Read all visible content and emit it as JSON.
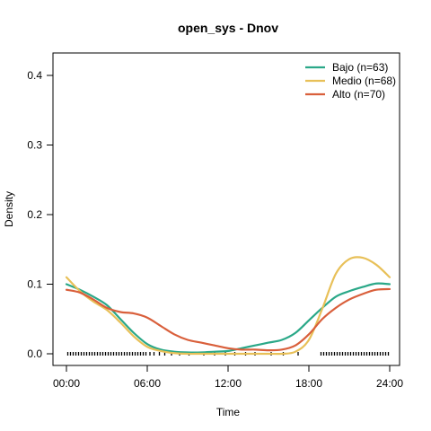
{
  "chart_data": {
    "type": "line",
    "title": "open_sys - Dnov",
    "xlabel": "Time",
    "ylabel": "Density",
    "x_tick_labels": [
      "00:00",
      "06:00",
      "12:00",
      "18:00",
      "24:00"
    ],
    "x_ticks_hours": [
      0,
      6,
      12,
      18,
      24
    ],
    "y_ticks": [
      0.0,
      0.1,
      0.2,
      0.3,
      0.4
    ],
    "y_tick_labels": [
      "0.0",
      "0.1",
      "0.2",
      "0.3",
      "0.4"
    ],
    "xlim": [
      0,
      24
    ],
    "ylim": [
      0,
      0.4
    ],
    "legend_position": "top-right",
    "grid": false,
    "rug": true,
    "series": [
      {
        "name": "Bajo (n=63)",
        "color": "#2aa888",
        "x": [
          0,
          1,
          2,
          3,
          4,
          5,
          6,
          7,
          8,
          9,
          10,
          11,
          12,
          13,
          14,
          15,
          16,
          17,
          18,
          19,
          20,
          21,
          22,
          23,
          24
        ],
        "y": [
          0.1,
          0.092,
          0.082,
          0.07,
          0.05,
          0.03,
          0.014,
          0.006,
          0.003,
          0.002,
          0.002,
          0.003,
          0.004,
          0.008,
          0.012,
          0.016,
          0.02,
          0.03,
          0.048,
          0.066,
          0.082,
          0.09,
          0.096,
          0.101,
          0.1
        ]
      },
      {
        "name": "Medio (n=68)",
        "color": "#e8c058",
        "x": [
          0,
          1,
          2,
          3,
          4,
          5,
          6,
          7,
          8,
          9,
          10,
          11,
          12,
          13,
          14,
          15,
          16,
          17,
          18,
          19,
          20,
          21,
          22,
          23,
          24
        ],
        "y": [
          0.11,
          0.09,
          0.075,
          0.063,
          0.045,
          0.025,
          0.01,
          0.004,
          0.001,
          0.0,
          0.0,
          0.0,
          0.0,
          0.0,
          0.0,
          0.0,
          0.0,
          0.003,
          0.02,
          0.065,
          0.115,
          0.136,
          0.138,
          0.128,
          0.11
        ]
      },
      {
        "name": "Alto (n=70)",
        "color": "#d95f3b",
        "x": [
          0,
          1,
          2,
          3,
          4,
          5,
          6,
          7,
          8,
          9,
          10,
          11,
          12,
          13,
          14,
          15,
          16,
          17,
          18,
          19,
          20,
          21,
          22,
          23,
          24
        ],
        "y": [
          0.092,
          0.088,
          0.078,
          0.066,
          0.06,
          0.058,
          0.052,
          0.04,
          0.028,
          0.02,
          0.016,
          0.012,
          0.008,
          0.006,
          0.006,
          0.005,
          0.006,
          0.012,
          0.028,
          0.05,
          0.066,
          0.078,
          0.086,
          0.092,
          0.093
        ]
      }
    ],
    "rug_hours": [
      0.1,
      0.3,
      0.5,
      0.7,
      0.9,
      1.1,
      1.3,
      1.5,
      1.7,
      1.9,
      2.1,
      2.3,
      2.5,
      2.7,
      2.9,
      3.1,
      3.3,
      3.5,
      3.7,
      3.9,
      4.1,
      4.3,
      4.5,
      4.7,
      4.9,
      5.1,
      5.3,
      5.5,
      5.7,
      5.9,
      6.2,
      6.5,
      6.9,
      7.3,
      7.8,
      8.4,
      9.1,
      10.2,
      11.0,
      11.8,
      12.5,
      13.3,
      14.0,
      15.2,
      16.1,
      17.2,
      18.9,
      19.1,
      19.3,
      19.5,
      19.7,
      19.9,
      20.1,
      20.3,
      20.5,
      20.7,
      20.9,
      21.1,
      21.3,
      21.5,
      21.7,
      21.9,
      22.1,
      22.3,
      22.5,
      22.7,
      22.9,
      23.1,
      23.3,
      23.5,
      23.7,
      23.9
    ]
  }
}
